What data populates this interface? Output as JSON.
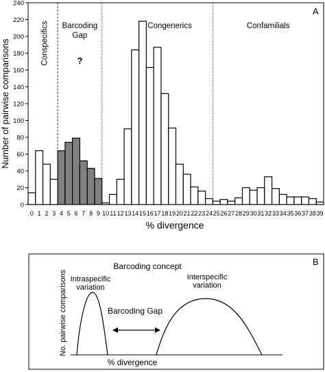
{
  "chart_data": [
    {
      "type": "bar",
      "panel_label": "A",
      "xlabel": "% divergence",
      "ylabel": "Number of pairwise comparisons",
      "ylim": [
        0,
        240
      ],
      "yticks": [
        0,
        20,
        40,
        60,
        80,
        100,
        120,
        140,
        160,
        180,
        200,
        220,
        240
      ],
      "categories": [
        "0",
        "1",
        "2",
        "3",
        "4",
        "5",
        "6",
        "7",
        "8",
        "9",
        "10",
        "11",
        "12",
        "13",
        "14",
        "15",
        "16",
        "17",
        "18",
        "19",
        "20",
        "21",
        "22",
        "23",
        "24",
        "25",
        "26",
        "27",
        "28",
        "29",
        "30",
        "31",
        "32",
        "33",
        "34",
        "35",
        "36",
        "37",
        "38",
        "39"
      ],
      "values": [
        14,
        64,
        48,
        30,
        64,
        74,
        79,
        52,
        43,
        31,
        2,
        12,
        30,
        90,
        184,
        218,
        163,
        187,
        132,
        91,
        48,
        36,
        21,
        16,
        7,
        4,
        6,
        4,
        8,
        20,
        17,
        20,
        33,
        19,
        12,
        9,
        9,
        9,
        7,
        3
      ],
      "highlighted_categories": [
        "4",
        "5",
        "6",
        "7",
        "8",
        "9"
      ],
      "regions": [
        {
          "label": "Conspecifics",
          "from": "0",
          "to": "3"
        },
        {
          "label": "Barcoding\nGap",
          "from": "4",
          "to": "9",
          "note": "?"
        },
        {
          "label": "Congenerics",
          "from": "10",
          "to": "24"
        },
        {
          "label": "Confamilials",
          "from": "25",
          "to": "39"
        }
      ],
      "grid": false,
      "colors": {
        "bar": "#ffffff",
        "highlight": "#808080",
        "stroke": "#000000"
      }
    },
    {
      "type": "line",
      "panel_label": "B",
      "title": "Barcoding concept",
      "xlabel": "% divergence",
      "ylabel": "No. pairwise comparisons",
      "annotations": {
        "intraspecific": "Intraspecific\nvariation",
        "interspecific": "Interspecific\nvariation",
        "gap": "Barcoding Gap"
      }
    }
  ]
}
